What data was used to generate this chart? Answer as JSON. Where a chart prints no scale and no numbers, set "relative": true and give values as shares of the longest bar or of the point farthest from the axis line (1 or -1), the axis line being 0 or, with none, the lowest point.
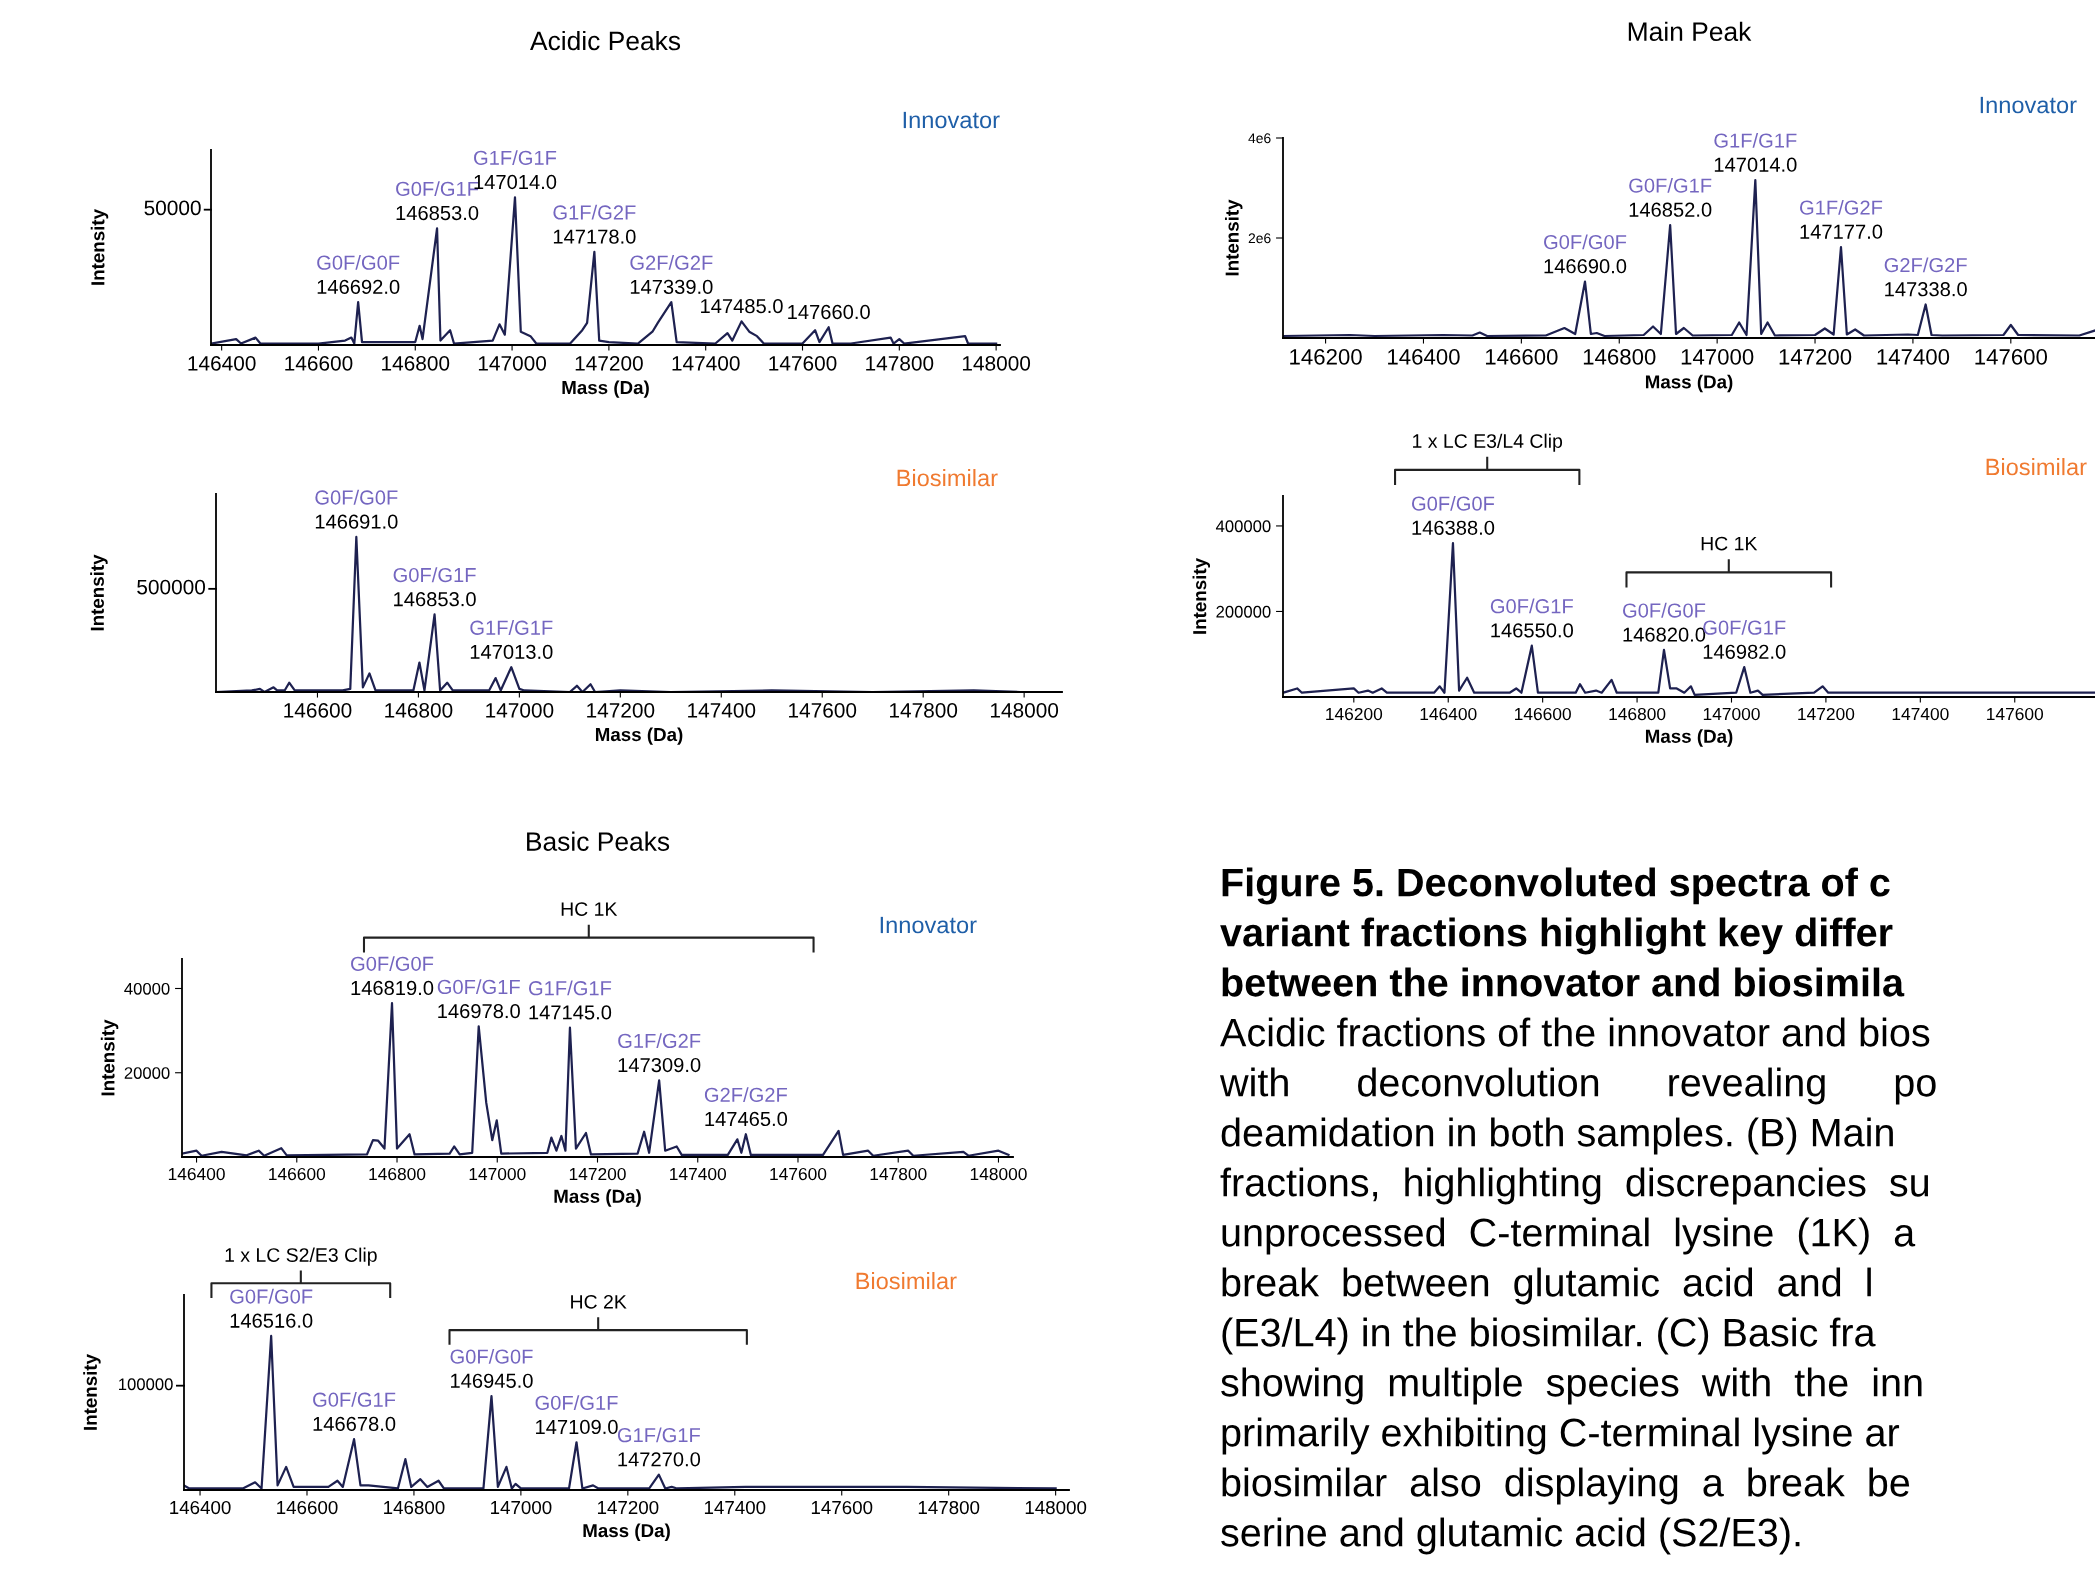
{
  "chart_data": [
    {
      "type": "line",
      "title": "Acidic Peaks",
      "subtitle": "Innovator",
      "xlabel": "Mass (Da)",
      "ylabel": "Intensity",
      "relative": true,
      "xlim": [
        146378,
        148008
      ],
      "xticks": [
        146400,
        146600,
        146800,
        147000,
        147200,
        147400,
        147600,
        147800,
        148000
      ],
      "grid": false,
      "series": [
        {
          "color": "#1e2150",
          "x": [
            146378,
            146430,
            146440,
            146470,
            146480,
            146600,
            146655,
            146668,
            146674,
            146682,
            146690,
            146800,
            146809,
            146815,
            146845,
            146852,
            146872,
            146880,
            146960,
            146974,
            146985,
            147006,
            147018,
            147038,
            147050,
            147120,
            147145,
            147155,
            147170,
            147180,
            147200,
            147260,
            147290,
            147301,
            147329,
            147340,
            147420,
            147445,
            147455,
            147474,
            147490,
            147506,
            147520,
            147600,
            147626,
            147635,
            147654,
            147662,
            147700,
            147782,
            147788,
            147800,
            147810,
            147936,
            147942,
            148000
          ],
          "values": [
            0.01,
            0.04,
            0.01,
            0.05,
            0.01,
            0.01,
            0.03,
            0.05,
            0.01,
            0.29,
            0.02,
            0.02,
            0.13,
            0.04,
            0.79,
            0.03,
            0.1,
            0.01,
            0.03,
            0.14,
            0.07,
            1,
            0.09,
            0.06,
            0.01,
            0.01,
            0.1,
            0.15,
            0.63,
            0.03,
            0.02,
            0.01,
            0.09,
            0.15,
            0.29,
            0.02,
            0.01,
            0.08,
            0.03,
            0.16,
            0.09,
            0.06,
            0.01,
            0.01,
            0.1,
            0.02,
            0.12,
            0.01,
            0.01,
            0.05,
            0.01,
            0.04,
            0.01,
            0.06,
            0.01,
            0.01
          ]
        }
      ],
      "annotations": [
        "50000",
        {
          "text": "G0F/G0F\n146692.0",
          "x": 146682,
          "y": 0.29
        },
        {
          "text": "G0F/G1F\n146853.0",
          "x": 146845,
          "y": 0.79
        },
        {
          "text": "G1F/G1F\n147014.0",
          "x": 147006,
          "y": 1
        },
        {
          "text": "G1F/G2F\n147178.0",
          "x": 147170,
          "y": 0.63
        },
        {
          "text": "G2F/G2F\n147339.0",
          "x": 147329,
          "y": 0.29
        },
        {
          "text": "147485.0",
          "x": 147474,
          "y": 0.16
        },
        {
          "text": "147660.0",
          "x": 147654,
          "y": 0.12
        }
      ]
    },
    {
      "type": "line",
      "subtitle": "Biosimilar",
      "xlabel": "Mass (Da)",
      "ylabel": "Intensity",
      "relative": true,
      "xlim": [
        146399,
        148075
      ],
      "xticks": [
        146600,
        146800,
        147000,
        147200,
        147400,
        147600,
        147800,
        148000
      ],
      "grid": false,
      "series": [
        {
          "color": "#1e2150",
          "x": [
            146399,
            146470,
            146486,
            146495,
            146513,
            146520,
            146535,
            146544,
            146555,
            146650,
            146665,
            146677,
            146690,
            146703,
            146715,
            146790,
            146802,
            146812,
            146832,
            146843,
            146857,
            146868,
            146940,
            146953,
            146963,
            146984,
            147000,
            147010,
            147100,
            147114,
            147125,
            147141,
            147150,
            147200,
            147300,
            147500,
            147700,
            147900,
            147990
          ],
          "values": [
            0,
            0.01,
            0.02,
            0,
            0.03,
            0.01,
            0.01,
            0.06,
            0.01,
            0.01,
            0.02,
            1,
            0.03,
            0.12,
            0.01,
            0.01,
            0.19,
            0.01,
            0.5,
            0.01,
            0.06,
            0.01,
            0.01,
            0.09,
            0.01,
            0.16,
            0.02,
            0.01,
            0,
            0.04,
            0,
            0.05,
            0,
            0.01,
            0,
            0.01,
            0,
            0.01,
            0
          ]
        }
      ],
      "annotations": [
        "500000",
        {
          "text": "G0F/G0F\n146691.0",
          "x": 146677,
          "y": 1
        },
        {
          "text": "G0F/G1F\n146853.0",
          "x": 146832,
          "y": 0.5
        },
        {
          "text": "G1F/G1F\n147013.0",
          "x": 146984,
          "y": 0.16
        }
      ]
    },
    {
      "type": "line",
      "title": "Main Peak",
      "subtitle": "Innovator",
      "xlabel": "Mass (Da)",
      "ylabel": "Intensity",
      "xlim": [
        146113,
        147772
      ],
      "ylim": [
        0,
        4000000
      ],
      "xticks": [
        146200,
        146400,
        146600,
        146800,
        147000,
        147200,
        147400,
        147600
      ],
      "yticks": [
        {
          "value": 2000000,
          "label": "2e6"
        },
        {
          "value": 4000000,
          "label": "4e6"
        }
      ],
      "grid": false,
      "series": [
        {
          "color": "#1e2150",
          "x": [
            146113,
            146250,
            146300,
            146440,
            146500,
            146515,
            146530,
            146650,
            146688,
            146710,
            146730,
            146742,
            146754,
            146770,
            146850,
            146869,
            146885,
            146904,
            146916,
            146932,
            146950,
            147030,
            147045,
            147060,
            147078,
            147090,
            147103,
            147118,
            147200,
            147220,
            147238,
            147253,
            147265,
            147282,
            147300,
            147390,
            147410,
            147426,
            147438,
            147460,
            147585,
            147600,
            147615,
            147740,
            147772
          ],
          "values": [
            40000,
            60000,
            40000,
            60000,
            50000,
            110000,
            40000,
            50000,
            200000,
            80000,
            1130000,
            80000,
            100000,
            40000,
            60000,
            230000,
            80000,
            2260000,
            80000,
            200000,
            50000,
            60000,
            310000,
            60000,
            3160000,
            80000,
            310000,
            50000,
            60000,
            190000,
            70000,
            1820000,
            70000,
            170000,
            50000,
            70000,
            60000,
            670000,
            60000,
            50000,
            60000,
            260000,
            60000,
            50000,
            150000
          ]
        }
      ],
      "annotations": [
        {
          "text": "G0F/G0F\n146690.0",
          "x": 146730,
          "y": 1130000
        },
        {
          "text": "G0F/G1F\n146852.0",
          "x": 146904,
          "y": 2260000
        },
        {
          "text": "G1F/G1F\n147014.0",
          "x": 147078,
          "y": 3160000
        },
        {
          "text": "G1F/G2F\n147177.0",
          "x": 147253,
          "y": 1820000
        },
        {
          "text": "G2F/G2F\n147338.0",
          "x": 147426,
          "y": 670000
        }
      ]
    },
    {
      "type": "line",
      "subtitle": "Biosimilar",
      "xlabel": "Mass (Da)",
      "ylabel": "Intensity",
      "xlim": [
        146050,
        147770
      ],
      "ylim": [
        0,
        470000
      ],
      "xticks": [
        146200,
        146400,
        146600,
        146800,
        147000,
        147200,
        147400,
        147600
      ],
      "yticks": [
        200000,
        400000
      ],
      "grid": false,
      "series": [
        {
          "color": "#1e2150",
          "x": [
            146050,
            146080,
            146090,
            146200,
            146210,
            146230,
            146240,
            146259,
            146270,
            146370,
            146382,
            146392,
            146410,
            146423,
            146440,
            146455,
            146530,
            146544,
            146555,
            146577,
            146590,
            146605,
            146670,
            146679,
            146690,
            146713,
            146725,
            146746,
            146757,
            146845,
            146857,
            146870,
            146884,
            146900,
            146914,
            146922,
            147010,
            147027,
            147040,
            147056,
            147066,
            147175,
            147193,
            147205,
            147300,
            147400,
            147600,
            147770
          ],
          "values": [
            10000,
            20000,
            10000,
            20000,
            10000,
            15000,
            10000,
            20000,
            10000,
            10000,
            25000,
            10000,
            360000,
            15000,
            45000,
            10000,
            10000,
            20000,
            10000,
            120000,
            10000,
            10000,
            10000,
            30000,
            10000,
            15000,
            10000,
            40000,
            10000,
            10000,
            110000,
            20000,
            20000,
            10000,
            25000,
            5000,
            10000,
            70000,
            10000,
            15000,
            5000,
            10000,
            25000,
            10000,
            10000,
            10000,
            10000,
            10000
          ]
        }
      ],
      "annotations": [
        "1 x LC E3/L4 Clip",
        "HC 1K",
        {
          "text": "G0F/G0F\n146388.0",
          "x": 146410,
          "y": 360000
        },
        {
          "text": "G0F/G1F\n146550.0",
          "x": 146577,
          "y": 120000
        },
        {
          "text": "G0F/G0F\n146820.0",
          "x": 146857,
          "y": 110000
        },
        {
          "text": "G0F/G1F\n146982.0",
          "x": 147027,
          "y": 70000
        }
      ]
    },
    {
      "type": "line",
      "title": "Basic Peaks",
      "subtitle": "Innovator",
      "xlabel": "Mass (Da)",
      "ylabel": "Intensity",
      "xlim": [
        146371,
        148029
      ],
      "ylim": [
        0,
        47000
      ],
      "xticks": [
        146400,
        146600,
        146800,
        147000,
        147200,
        147400,
        147600,
        147800,
        148000
      ],
      "yticks": [
        20000,
        40000
      ],
      "grid": false,
      "series": [
        {
          "color": "#1e2150",
          "x": [
            146371,
            146400,
            146410,
            146450,
            146500,
            146524,
            146535,
            146569,
            146580,
            146740,
            146752,
            146762,
            146775,
            146790,
            146800,
            146825,
            146835,
            146905,
            146914,
            146925,
            146950,
            146963,
            146978,
            146990,
            146999,
            147008,
            147100,
            147108,
            147118,
            147128,
            147136,
            147145,
            147157,
            147177,
            147187,
            147280,
            147293,
            147303,
            147323,
            147335,
            147358,
            147368,
            147460,
            147479,
            147487,
            147496,
            147506,
            147650,
            147681,
            147690,
            147740,
            147750,
            147820,
            147830,
            147930,
            147940,
            148000,
            148020
          ],
          "values": [
            800,
            1500,
            300,
            1200,
            400,
            1500,
            300,
            2100,
            400,
            600,
            4000,
            3900,
            2000,
            36500,
            2000,
            5400,
            600,
            800,
            2500,
            600,
            1000,
            31000,
            12900,
            4000,
            8700,
            800,
            1000,
            4600,
            1500,
            5000,
            1500,
            30700,
            2000,
            5700,
            600,
            800,
            6000,
            1000,
            18200,
            1500,
            2500,
            500,
            500,
            4200,
            1000,
            5400,
            500,
            500,
            6200,
            500,
            1500,
            300,
            1500,
            300,
            1200,
            300,
            1500,
            500
          ]
        }
      ],
      "annotations": [
        "HC 1K",
        {
          "text": "G0F/G0F\n146819.0",
          "x": 146790,
          "y": 36500
        },
        {
          "text": "G0F/G1F\n146978.0",
          "x": 146963,
          "y": 31000
        },
        {
          "text": "G1F/G1F\n147145.0",
          "x": 147145,
          "y": 30700
        },
        {
          "text": "G1F/G2F\n147309.0",
          "x": 147323,
          "y": 18200
        },
        {
          "text": "G2F/G2F\n147465.0",
          "x": 147496,
          "y": 5400
        }
      ]
    },
    {
      "type": "line",
      "subtitle": "Biosimilar",
      "xlabel": "Mass (Da)",
      "ylabel": "Intensity",
      "relative": true,
      "xlim": [
        146370,
        148025
      ],
      "xticks": [
        146400,
        146600,
        146800,
        147000,
        147200,
        147400,
        147600,
        147800,
        148000
      ],
      "grid": false,
      "series": [
        {
          "color": "#1e2150",
          "x": [
            146370,
            146380,
            146480,
            146503,
            146515,
            146533,
            146545,
            146561,
            146575,
            146640,
            146657,
            146667,
            146688,
            146700,
            146715,
            146770,
            146784,
            146795,
            146812,
            146825,
            146846,
            146856,
            146930,
            146945,
            146957,
            146973,
            146983,
            146990,
            147000,
            147090,
            147104,
            147115,
            147135,
            147145,
            147240,
            147258,
            147270,
            147282,
            147292,
            147420,
            147527,
            147721,
            148000
          ],
          "values": [
            0.03,
            0.01,
            0.01,
            0.05,
            0.01,
            1,
            0.03,
            0.15,
            0.02,
            0.02,
            0.06,
            0.02,
            0.33,
            0.03,
            0.03,
            0.01,
            0.2,
            0.02,
            0.07,
            0.02,
            0.06,
            0.01,
            0.01,
            0.61,
            0.02,
            0.15,
            0.01,
            0.04,
            0.01,
            0.01,
            0.31,
            0.01,
            0.03,
            0.01,
            0.01,
            0.1,
            0.01,
            0.02,
            0.01,
            0.02,
            0.02,
            0.02,
            0.01
          ]
        }
      ],
      "annotations": [
        "100000",
        "1 x LC S2/E3 Clip",
        "HC 2K",
        {
          "text": "G0F/G0F\n146516.0",
          "x": 146533,
          "y": 1
        },
        {
          "text": "G0F/G1F\n146678.0",
          "x": 146688,
          "y": 0.33
        },
        {
          "text": "G0F/G0F\n146945.0",
          "x": 146945,
          "y": 0.61
        },
        {
          "text": "G0F/G1F\n147109.0",
          "x": 147104,
          "y": 0.31
        },
        {
          "text": "G1F/G1F\n147270.0",
          "x": 147258,
          "y": 0.1
        }
      ]
    },
    {
      "type": "other",
      "title": "Figure 5. Deconvoluted spectra of c\nvariant fractions highlight key differ\nbetween the innovator and biosimila",
      "annotations": [
        "Acidic fractions of the innovator and bios",
        "with      deconvolution      revealing      po",
        "deamidation in both samples. (B) Main",
        "fractions,  highlighting  discrepancies  su",
        "unprocessed  C-terminal  lysine  (1K)  a",
        "break  between  glutamic  acid  and  l",
        "(E3/L4) in the biosimilar. (C) Basic fra",
        "showing  multiple  species  with  the  inn",
        "primarily exhibiting C-terminal lysine ar",
        "biosimilar  also  displaying  a  break  be",
        "serine and glutamic acid (S2/E3)."
      ]
    }
  ]
}
